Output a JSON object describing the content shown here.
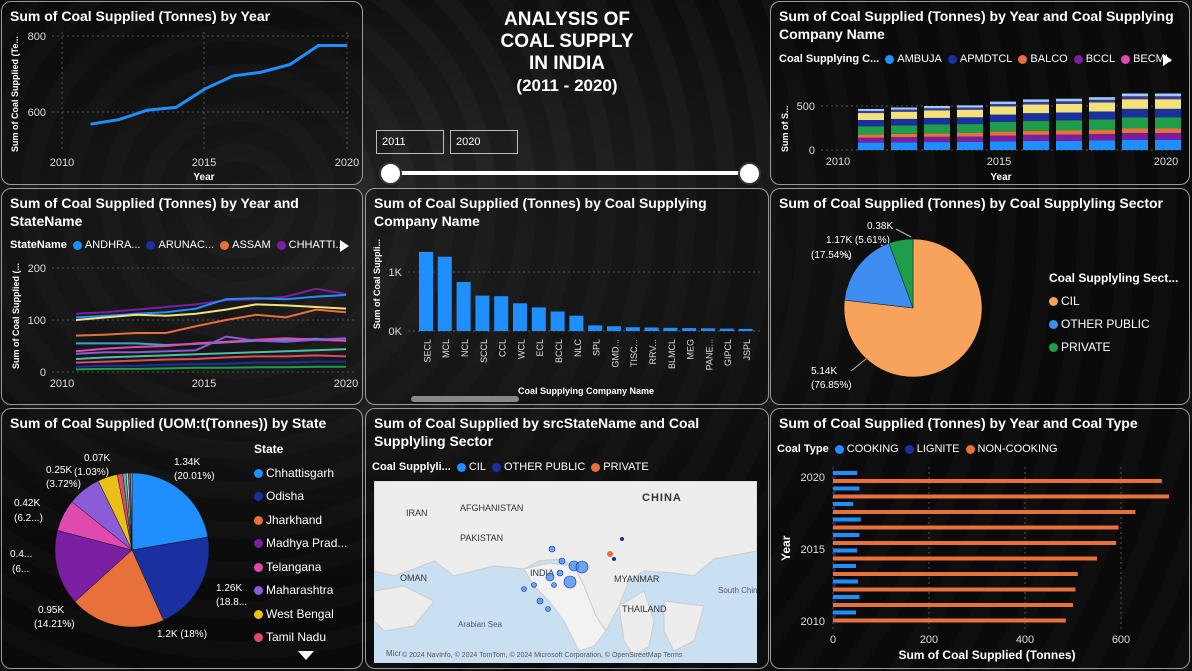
{
  "dashboard": {
    "title_lines": [
      "ANALYSIS OF",
      "COAL SUPPLY",
      "IN INDIA"
    ],
    "subtitle": "(2011 - 2020)",
    "slider": {
      "start_value": "2011",
      "end_value": "2020"
    }
  },
  "colors": {
    "blue": "#1f8fff",
    "navy": "#1a2fa0",
    "orange": "#e8703a",
    "purple": "#7b1fa2",
    "pink": "#e04ab0",
    "green": "#1e9e4a",
    "yellow": "#f3e27a",
    "lightorange": "#f7a35c"
  },
  "p1": {
    "title": "Sum of Coal Supplied (Tonnes) by Year",
    "ylabel": "Sum of Coal Supplied (Te...",
    "xlabel": "Year",
    "yticks": [
      "800",
      "600"
    ],
    "xticks": [
      "2010",
      "2015",
      "2020"
    ]
  },
  "p2": {
    "title": "Sum of Coal Supplied (Tonnes) by Year and Coal Supplying Company Name",
    "legend_title": "Coal Supplying C...",
    "legend": [
      "AMBUJA",
      "APMDTCL",
      "BALCO",
      "BCCL",
      "BECML"
    ],
    "ylabel": "Sum of S...",
    "xlabel": "Year",
    "yticks": [
      "500",
      "0"
    ],
    "xticks": [
      "2010",
      "2015",
      "2020"
    ]
  },
  "p3": {
    "title": "Sum of Coal Supplied (Tonnes) by Year and StateName",
    "legend_title": "StateName",
    "legend": [
      "ANDHRA...",
      "ARUNAC...",
      "ASSAM",
      "CHHATTI..."
    ],
    "ylabel": "Sum of Coal Supplied (...",
    "yticks": [
      "200",
      "100",
      "0"
    ],
    "xticks": [
      "2010",
      "2015",
      "2020"
    ]
  },
  "p4": {
    "title": "Sum of Coal Supplied (Tonnes) by Coal Supplying Company Name",
    "ylabel": "Sum of Coal Suppli...",
    "xlabel": "Coal Supplying Company Name",
    "yticks": [
      "1K",
      "0K"
    ]
  },
  "p5": {
    "title": "Sum of Coal Supplied (Tonnes) by Coal Supplyling Sector",
    "legend_title": "Coal Supplyling Sect...",
    "legend": [
      "CIL",
      "OTHER PUBLIC",
      "PRIVATE"
    ],
    "labels": {
      "a": "0.38K",
      "b1": "1.17K (5.61%)",
      "b2": "(17.54%)",
      "c1": "5.14K",
      "c2": "(76.85%)"
    }
  },
  "p6": {
    "title": "Sum of Coal Supplied (UOM:t(Tonnes)) by State",
    "legend_title": "State",
    "legend": [
      "Chhattisgarh",
      "Odisha",
      "Jharkhand",
      "Madhya Prad...",
      "Telangana",
      "Maharashtra",
      "West Bengal",
      "Tamil Nadu"
    ],
    "labels": {
      "l1a": "1.34K",
      "l1b": "(20.01%)",
      "l2a": "1.26K",
      "l2b": "(18.8...",
      "l3": "1.2K (18%)",
      "l4a": "0.95K",
      "l4b": "(14.21%)",
      "l5a": "0.4...",
      "l5b": "(6...",
      "l6a": "0.42K",
      "l6b": "(6.2...)",
      "l7a": "0.25K",
      "l7b": "(3.72%)",
      "l8a": "0.07K",
      "l8b": "(1.03%)"
    }
  },
  "p7": {
    "title": "Sum of Coal Supplied by srcStateName and Coal Supplyling Sector",
    "legend_title": "Coal Supplyli...",
    "legend": [
      "CIL",
      "OTHER PUBLIC",
      "PRIVATE"
    ],
    "map_labels": {
      "china": "CHINA",
      "iran": "IRAN",
      "afghanistan": "AFGHANISTAN",
      "pakistan": "PAKISTAN",
      "india": "INDIA",
      "oman": "OMAN",
      "myanmar": "MYANMAR",
      "thailand": "THAILAND",
      "arabian_sea": "Arabian Sea",
      "south_china_sea": "South China Sea"
    },
    "attribution": "© 2024 NavInfo, © 2024 TomTom, © 2024 Microsoft Corporation, © OpenStreetMap  Terms",
    "bing": "Micr"
  },
  "p8": {
    "title": "Sum of Coal Supplied (Tonnes) by Year and Coal Type",
    "legend_title": "Coal Type",
    "legend": [
      "COOKING",
      "LIGNITE",
      "NON-COOKING"
    ],
    "ylabel": "Year",
    "xlabel": "Sum of Coal Supplied (Tonnes)",
    "yticks": [
      "2020",
      "2015",
      "2010"
    ],
    "xticks": [
      "0",
      "200",
      "400",
      "600"
    ]
  },
  "chart_data": [
    {
      "type": "line",
      "title": "Sum of Coal Supplied (Tonnes) by Year",
      "xlabel": "Year",
      "x": [
        2011,
        2012,
        2013,
        2014,
        2015,
        2016,
        2017,
        2018,
        2019,
        2020
      ],
      "values": [
        568,
        580,
        605,
        612,
        660,
        695,
        705,
        725,
        775,
        775
      ],
      "ylim": [
        500,
        830
      ]
    },
    {
      "type": "bar",
      "title": "Sum of Coal Supplied (Tonnes) by Coal Supplying Company Name",
      "categories": [
        "SECL",
        "MCL",
        "NCL",
        "SCCL",
        "CCL",
        "WCL",
        "ECL",
        "BCCL",
        "NLC",
        "SPL",
        "GMD...",
        "TISC...",
        "RRV...",
        "BLMCL",
        "MEG",
        "PANE...",
        "GIPCL",
        "JSPL"
      ],
      "values": [
        1340,
        1260,
        830,
        600,
        590,
        470,
        400,
        330,
        260,
        95,
        80,
        65,
        60,
        55,
        50,
        45,
        40,
        35
      ],
      "ylim": [
        0,
        1450
      ]
    },
    {
      "type": "pie",
      "title": "Sum of Coal Supplied (Tonnes) by Coal Supplyling Sector",
      "categories": [
        "CIL",
        "OTHER PUBLIC",
        "PRIVATE"
      ],
      "values": [
        5140,
        1170,
        380
      ]
    },
    {
      "type": "pie",
      "title": "Sum of Coal Supplied (UOM:t(Tonnes)) by State",
      "categories": [
        "Chhattisgarh",
        "Odisha",
        "Jharkhand",
        "Madhya Prad...",
        "Telangana",
        "Maharashtra",
        "West Bengal",
        "Tamil Nadu"
      ],
      "values": [
        1340,
        1260,
        1200,
        950,
        400,
        420,
        250,
        70
      ]
    },
    {
      "type": "bar",
      "title": "Sum of Coal Supplied (Tonnes) by Year and Coal Type",
      "orientation": "horizontal",
      "categories": [
        2020,
        2019,
        2018,
        2017,
        2016,
        2015,
        2014,
        2013,
        2012,
        2011
      ],
      "series": [
        {
          "name": "COOKING",
          "values": [
            50,
            55,
            42,
            58,
            55,
            50,
            48,
            52,
            55,
            48
          ]
        },
        {
          "name": "LIGNITE",
          "values": [
            5,
            5,
            5,
            5,
            5,
            5,
            5,
            5,
            5,
            5
          ]
        },
        {
          "name": "NON-COOKING",
          "values": [
            685,
            700,
            630,
            595,
            590,
            550,
            510,
            505,
            500,
            485
          ]
        }
      ],
      "xlim": [
        0,
        700
      ]
    }
  ]
}
